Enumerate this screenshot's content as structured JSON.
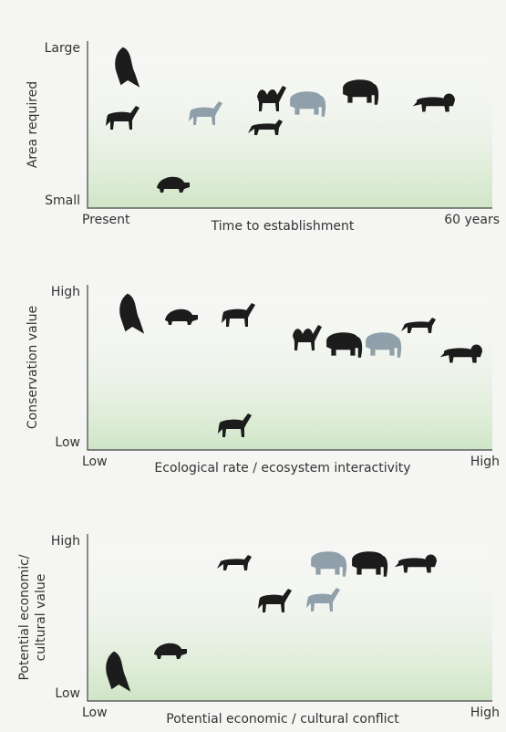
{
  "panels": [
    {
      "y_label": [
        "Area required"
      ],
      "y_top": "Large",
      "y_bottom": "Small",
      "x_left": "Present",
      "x_label": "Time to establishment",
      "x_right": "60 years"
    },
    {
      "y_label": [
        "Conservation value"
      ],
      "y_top": "High",
      "y_bottom": "Low",
      "x_left": "Low",
      "x_label": "Ecological rate / ecosystem interactivity",
      "x_right": "High"
    },
    {
      "y_label": [
        "Potential economic/",
        "cultural value"
      ],
      "y_top": "High",
      "y_bottom": "Low",
      "x_left": "Low",
      "x_label": "Potential economic / cultural conflict",
      "x_right": "High"
    }
  ]
}
